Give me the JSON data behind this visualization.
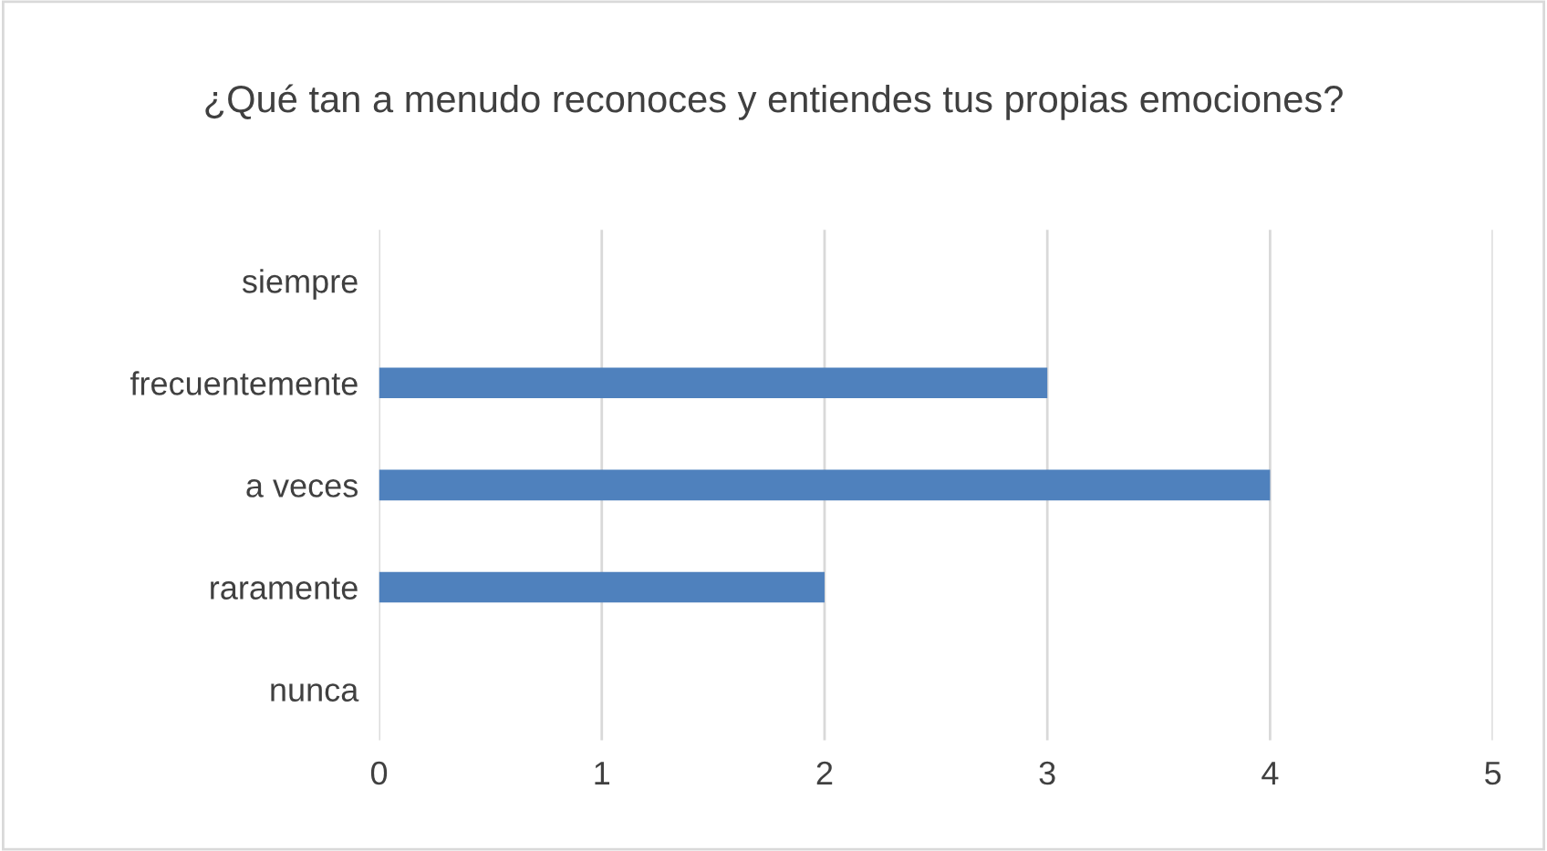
{
  "chart_data": {
    "type": "bar",
    "orientation": "horizontal",
    "title": "¿Qué tan a menudo reconoces y entiendes tus propias emociones?",
    "categories": [
      "siempre",
      "frecuentemente",
      "a veces",
      "raramente",
      "nunca"
    ],
    "values": [
      0,
      3,
      4,
      2,
      0
    ],
    "color": "#4f81bd",
    "xlim": [
      0,
      5
    ],
    "xticks": [
      0,
      1,
      2,
      3,
      4,
      5
    ],
    "grid": "x"
  }
}
